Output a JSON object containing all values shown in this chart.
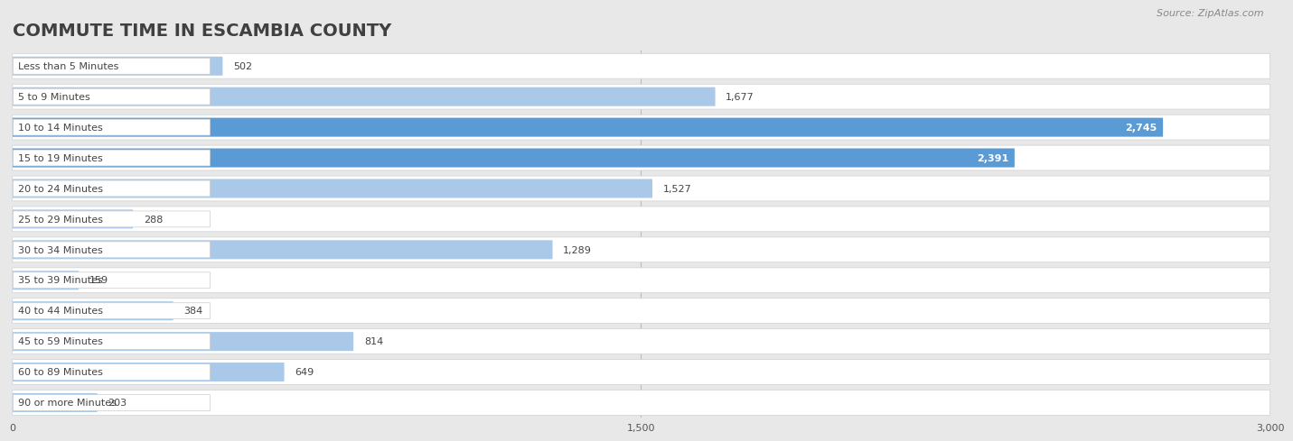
{
  "title": "COMMUTE TIME IN ESCAMBIA COUNTY",
  "source": "Source: ZipAtlas.com",
  "categories": [
    "Less than 5 Minutes",
    "5 to 9 Minutes",
    "10 to 14 Minutes",
    "15 to 19 Minutes",
    "20 to 24 Minutes",
    "25 to 29 Minutes",
    "30 to 34 Minutes",
    "35 to 39 Minutes",
    "40 to 44 Minutes",
    "45 to 59 Minutes",
    "60 to 89 Minutes",
    "90 or more Minutes"
  ],
  "values": [
    502,
    1677,
    2745,
    2391,
    1527,
    288,
    1289,
    159,
    384,
    814,
    649,
    203
  ],
  "bar_color_normal": "#aac9e8",
  "bar_color_highlight": "#5b9bd5",
  "highlight_indices": [
    2,
    3
  ],
  "xlim": [
    0,
    3000
  ],
  "xticks": [
    0,
    1500,
    3000
  ],
  "xtick_labels": [
    "0",
    "1,500",
    "3,000"
  ],
  "background_color": "#e8e8e8",
  "row_bg_color": "#ffffff",
  "row_border_color": "#d0d0d0",
  "title_fontsize": 14,
  "title_color": "#404040",
  "label_fontsize": 8,
  "value_fontsize": 8,
  "source_fontsize": 8,
  "source_color": "#888888"
}
